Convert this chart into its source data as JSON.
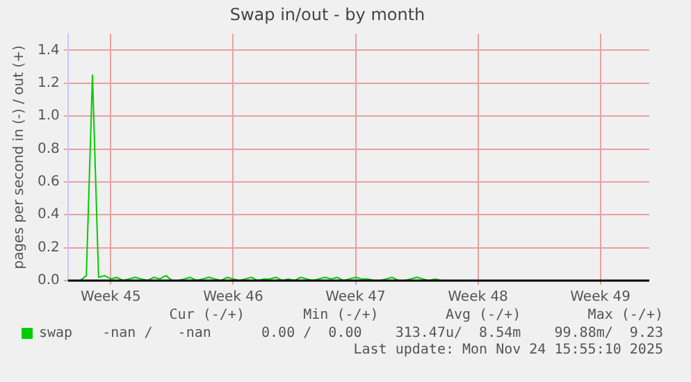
{
  "chart_data": {
    "type": "line",
    "title": "Swap in/out - by month",
    "ylabel": "pages per second in (-) / out (+)",
    "categories": [
      null,
      null,
      null,
      null,
      null,
      null,
      null,
      "Week 45",
      null,
      null,
      null,
      null,
      null,
      null,
      null,
      null,
      null,
      null,
      null,
      null,
      null,
      null,
      null,
      null,
      null,
      null,
      null,
      "Week 46",
      null,
      null,
      null,
      null,
      null,
      null,
      null,
      null,
      null,
      null,
      null,
      null,
      null,
      null,
      null,
      null,
      null,
      null,
      null,
      "Week 47",
      null,
      null,
      null,
      null,
      null,
      null,
      null,
      null,
      null,
      null,
      null,
      null,
      null,
      null,
      null,
      null,
      null,
      null,
      null,
      "Week 48",
      null,
      null,
      null,
      null,
      null,
      null,
      null,
      null,
      null,
      null,
      null,
      null,
      null,
      null,
      null,
      null,
      null,
      null,
      null,
      "Week 49",
      null,
      null,
      null,
      null,
      null,
      null,
      null,
      null
    ],
    "ylim": [
      0,
      1.5
    ],
    "yticks": [
      {
        "value": 0,
        "label": "0.0"
      },
      {
        "value": 0.2,
        "label": "0.2"
      },
      {
        "value": 0.4,
        "label": "0.4"
      },
      {
        "value": 0.6,
        "label": "0.6"
      },
      {
        "value": 0.8,
        "label": "0.8"
      },
      {
        "value": 1,
        "label": "1.0"
      },
      {
        "value": 1.2,
        "label": "1.2"
      },
      {
        "value": 1.4,
        "label": "1.4"
      }
    ],
    "series": [
      {
        "name": "swap",
        "color": "#00cc00",
        "values": [
          0,
          0,
          0,
          0.03,
          1.25,
          0.02,
          0.03,
          0.01,
          0.02,
          0,
          0.01,
          0.02,
          0.01,
          0,
          0.02,
          0.01,
          0.03,
          0,
          0,
          0.01,
          0.02,
          0,
          0.01,
          0.02,
          0.01,
          0,
          0.02,
          0.01,
          0,
          0.01,
          0.02,
          0,
          0.01,
          0.01,
          0.02,
          0,
          0.01,
          0,
          0.02,
          0.01,
          0,
          0.01,
          0.02,
          0.01,
          0.02,
          0,
          0.01,
          0.02,
          0.01,
          0.01,
          0,
          0,
          0.01,
          0.02,
          0,
          0,
          0.01,
          0.02,
          0.01,
          0,
          0.01,
          0,
          null,
          null,
          null,
          null,
          null,
          null,
          null,
          null,
          null,
          null,
          null,
          null,
          null,
          null,
          null,
          null,
          null,
          null,
          null,
          null,
          null,
          null,
          null,
          null,
          null,
          null,
          null,
          null,
          null,
          null,
          null,
          null,
          null,
          null
        ]
      }
    ],
    "grid": true,
    "legend": "bottom left",
    "annotations": [
      "Cur (-/+)       Min (-/+)        Avg (-/+)        Max (-/+)",
      "-nan /   -nan      0.00 /  0.00    313.47u/  8.54m    99.88m/  9.23",
      "Last update: Mon Nov 24 15:55:10 2025"
    ]
  }
}
